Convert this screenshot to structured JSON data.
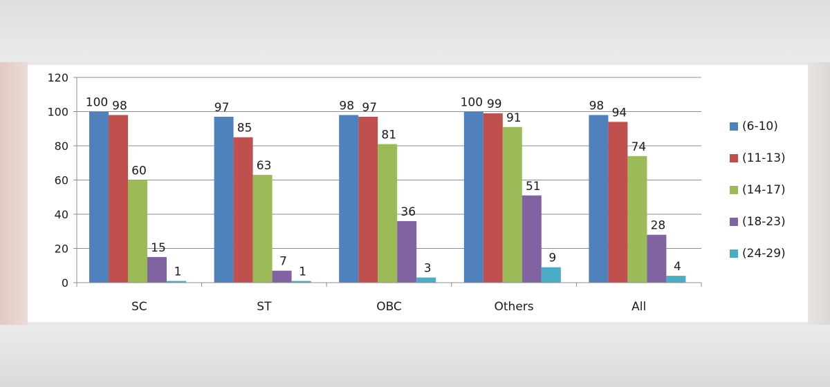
{
  "chart_data": {
    "type": "bar",
    "categories": [
      "SC",
      "ST",
      "OBC",
      "Others",
      "All"
    ],
    "series": [
      {
        "name": "(6-10)",
        "color": "#4f81bd",
        "values": [
          100,
          97,
          98,
          100,
          98
        ]
      },
      {
        "name": "(11-13)",
        "color": "#c0504d",
        "values": [
          98,
          85,
          97,
          99,
          94
        ]
      },
      {
        "name": "(14-17)",
        "color": "#9bbb59",
        "values": [
          60,
          63,
          81,
          91,
          74
        ]
      },
      {
        "name": "(18-23)",
        "color": "#8064a2",
        "values": [
          15,
          7,
          36,
          51,
          28
        ]
      },
      {
        "name": "(24-29)",
        "color": "#4bacc6",
        "values": [
          1,
          1,
          3,
          9,
          4
        ]
      }
    ],
    "title": "",
    "xlabel": "",
    "ylabel": "",
    "ylim": [
      0,
      120
    ],
    "yticks": [
      0,
      20,
      40,
      60,
      80,
      100,
      120
    ],
    "grid": true,
    "legend_position": "right",
    "data_labels": true
  }
}
